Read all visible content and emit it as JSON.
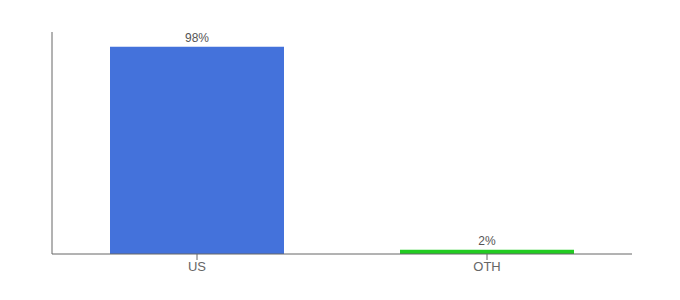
{
  "chart_data": {
    "type": "bar",
    "categories": [
      "US",
      "OTH"
    ],
    "values": [
      98,
      2
    ],
    "value_labels": [
      "98%",
      "2%"
    ],
    "data_labels": true,
    "colors": [
      "#4472db",
      "#22cc22"
    ],
    "ylim": [
      0,
      105
    ],
    "tick_labels": "x",
    "grid": false
  }
}
